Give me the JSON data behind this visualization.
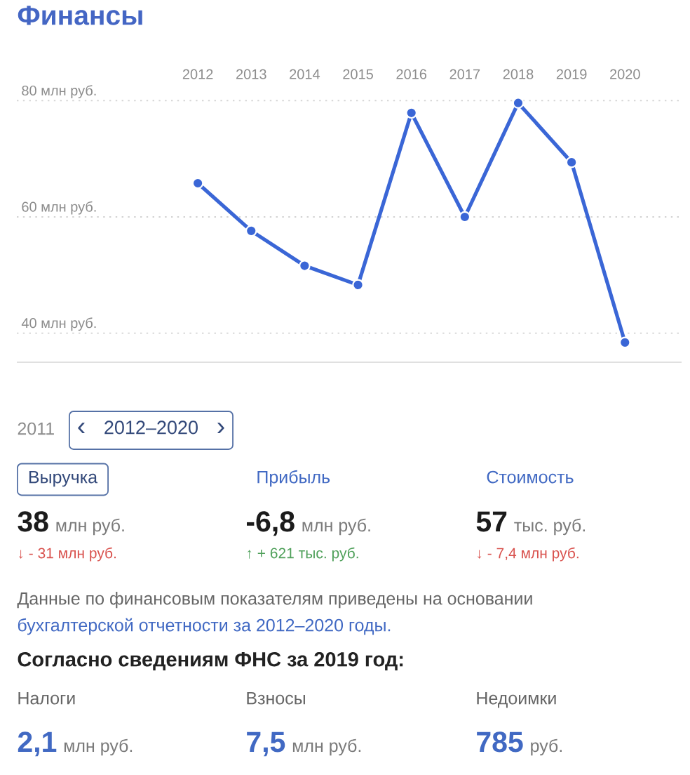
{
  "chart_data": [
    {
      "type": "line",
      "title": "Финансы",
      "categories": [
        "2012",
        "2013",
        "2014",
        "2015",
        "2016",
        "2017",
        "2018",
        "2019",
        "2020"
      ],
      "values": [
        65.8,
        57.6,
        51.6,
        48.3,
        77.9,
        60.0,
        79.6,
        69.4,
        38.4
      ],
      "color": "#3a66d6",
      "ylim": [
        35,
        80
      ],
      "yticks": [
        {
          "value": 40,
          "label": "40 млн руб."
        },
        {
          "value": 60,
          "label": "60 млн руб."
        },
        {
          "value": 80,
          "label": "80 млн руб."
        }
      ],
      "grid": "y",
      "marker": "circle",
      "line_style": "solid"
    },
    {
      "type": "other",
      "annotations": [
        "2011",
        "‹",
        "2012–2020",
        "›",
        "Выручка",
        "38",
        "млн руб.",
        "↓ - 31 млн руб.",
        "Прибыль",
        "-6,8",
        "млн руб.",
        "↑ + 621 тыс. руб.",
        "Стоимость",
        "57",
        "тыс. руб.",
        "↓ - 7,4 млн руб.",
        "Данные по финансовым показателям приведены на основании",
        "бухгалтерской отчетности за 2012–2020 годы."
      ]
    },
    {
      "type": "other",
      "title": "Согласно сведениям ФНС за 2019 год:",
      "annotations": [
        "Налоги",
        "2,1",
        "млн руб.",
        "Взносы",
        "7,5",
        "млн руб.",
        "Недоимки",
        "785",
        "руб."
      ]
    }
  ]
}
